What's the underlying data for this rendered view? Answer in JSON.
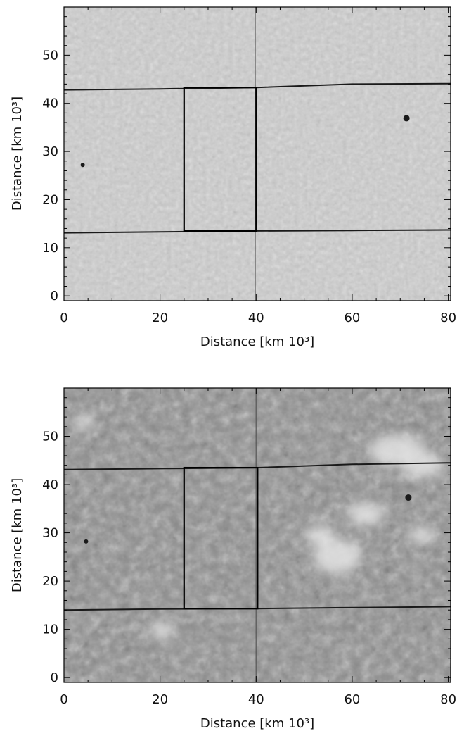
{
  "panels": [
    {
      "id": "top",
      "xlabel": "Distance [km 10³]",
      "ylabel": "Distance [km 10³]",
      "xlim": [
        0,
        80.5
      ],
      "ylim": [
        -1,
        60
      ],
      "xticks": [
        "0",
        "20",
        "40",
        "60",
        "80"
      ],
      "xtick_values": [
        0,
        20,
        40,
        60,
        80
      ],
      "yticks": [
        "0",
        "10",
        "20",
        "30",
        "40",
        "50"
      ],
      "ytick_values": [
        0,
        10,
        20,
        30,
        40,
        50
      ],
      "image_style": "light-gray granulation",
      "rectangle": {
        "x0": 25,
        "x1": 40,
        "y0": 13.5,
        "y1": 43.3
      },
      "horizontal_lines": [
        {
          "x": [
            0,
            20,
            40,
            60,
            80.5
          ],
          "y": [
            42.8,
            43.0,
            43.3,
            44.0,
            44.1
          ]
        },
        {
          "x": [
            0,
            20,
            40,
            60,
            80.5
          ],
          "y": [
            13.1,
            13.3,
            13.5,
            13.6,
            13.7
          ]
        }
      ],
      "vertical_line_x": 39.8,
      "dark_spots": [
        {
          "x": 71.3,
          "y": 36.9
        },
        {
          "x": 3.9,
          "y": 27.2
        }
      ]
    },
    {
      "id": "bottom",
      "xlabel": "Distance [km 10³]",
      "ylabel": "Distance [km 10³]",
      "xlim": [
        0,
        80.5
      ],
      "ylim": [
        -1,
        60
      ],
      "xticks": [
        "0",
        "20",
        "40",
        "60",
        "80"
      ],
      "xtick_values": [
        0,
        20,
        40,
        60,
        80
      ],
      "yticks": [
        "0",
        "10",
        "20",
        "30",
        "40",
        "50"
      ],
      "ytick_values": [
        0,
        10,
        20,
        30,
        40,
        50
      ],
      "image_style": "mid-gray network with bright patches",
      "rectangle": {
        "x0": 25,
        "x1": 40.3,
        "y0": 14.3,
        "y1": 43.5
      },
      "horizontal_lines": [
        {
          "x": [
            0,
            20,
            40,
            60,
            80.5
          ],
          "y": [
            43.1,
            43.3,
            43.5,
            44.2,
            44.5
          ]
        },
        {
          "x": [
            0,
            20,
            40,
            60,
            80.5
          ],
          "y": [
            14.0,
            14.2,
            14.3,
            14.5,
            14.7
          ]
        }
      ],
      "vertical_line_x": 40.0,
      "dark_spots": [
        {
          "x": 71.7,
          "y": 37.3
        },
        {
          "x": 4.6,
          "y": 28.2
        }
      ]
    }
  ]
}
